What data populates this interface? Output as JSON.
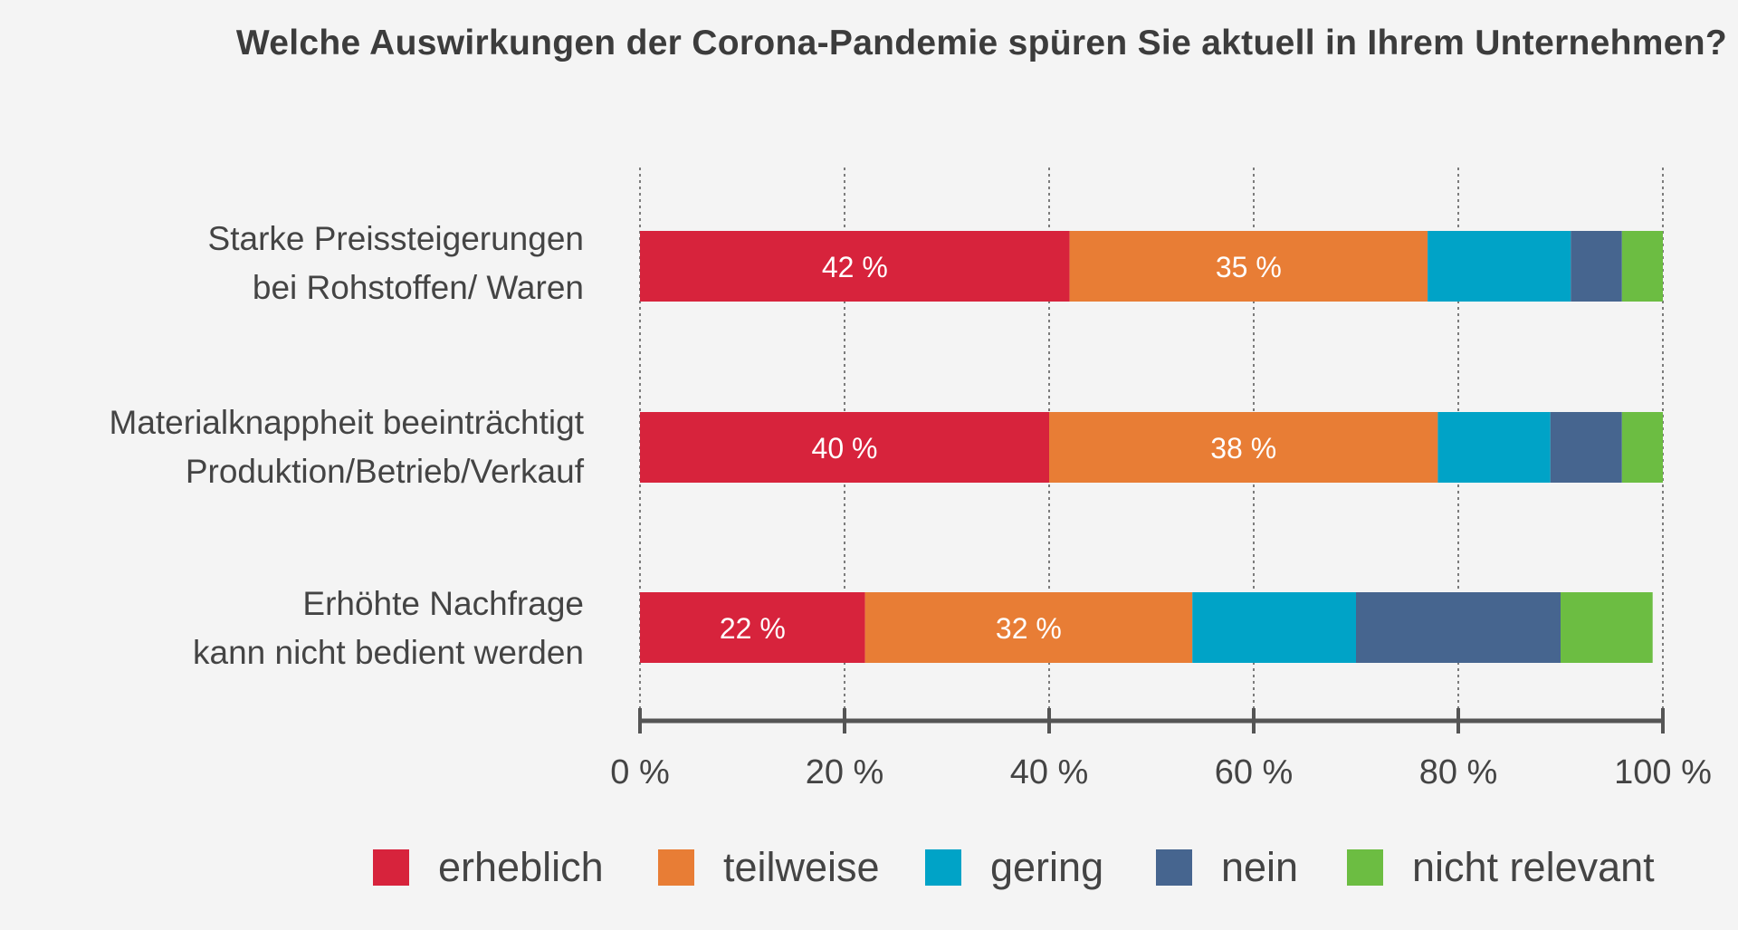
{
  "chart_data": {
    "type": "bar",
    "orientation": "horizontal",
    "stacked": true,
    "title": "Welche Auswirkungen der Corona-Pandemie spüren Sie aktuell in Ihrem Unternehmen?",
    "categories": [
      [
        "Starke Preissteigerungen",
        "bei Rohstoffen/ Waren"
      ],
      [
        "Materialknappheit beeinträchtigt",
        "Produktion/Betrieb/Verkauf"
      ],
      [
        "Erhöhte Nachfrage",
        "kann nicht bedient werden"
      ]
    ],
    "series": [
      {
        "name": "erheblich",
        "color": "#d7233c",
        "values": [
          42,
          40,
          22
        ],
        "labels": [
          "42 %",
          "40 %",
          "22 %"
        ]
      },
      {
        "name": "teilweise",
        "color": "#e87d35",
        "values": [
          35,
          38,
          32
        ],
        "labels": [
          "35 %",
          "38 %",
          "32 %"
        ]
      },
      {
        "name": "gering",
        "color": "#00a3c7",
        "values": [
          14,
          11,
          16
        ],
        "labels": [
          "",
          "",
          ""
        ]
      },
      {
        "name": "nein",
        "color": "#46658f",
        "values": [
          5,
          7,
          20
        ],
        "labels": [
          "",
          "",
          ""
        ]
      },
      {
        "name": "nicht relevant",
        "color": "#6cbd42",
        "values": [
          4,
          4,
          9
        ],
        "labels": [
          "",
          "",
          ""
        ]
      }
    ],
    "xlim": [
      0,
      100
    ],
    "xticks": [
      0,
      20,
      40,
      60,
      80,
      100
    ],
    "xtick_labels": [
      "0 %",
      "20 %",
      "40 %",
      "60 %",
      "80 %",
      "100 %"
    ],
    "grid": "vertical dotted",
    "legend_position": "bottom"
  }
}
